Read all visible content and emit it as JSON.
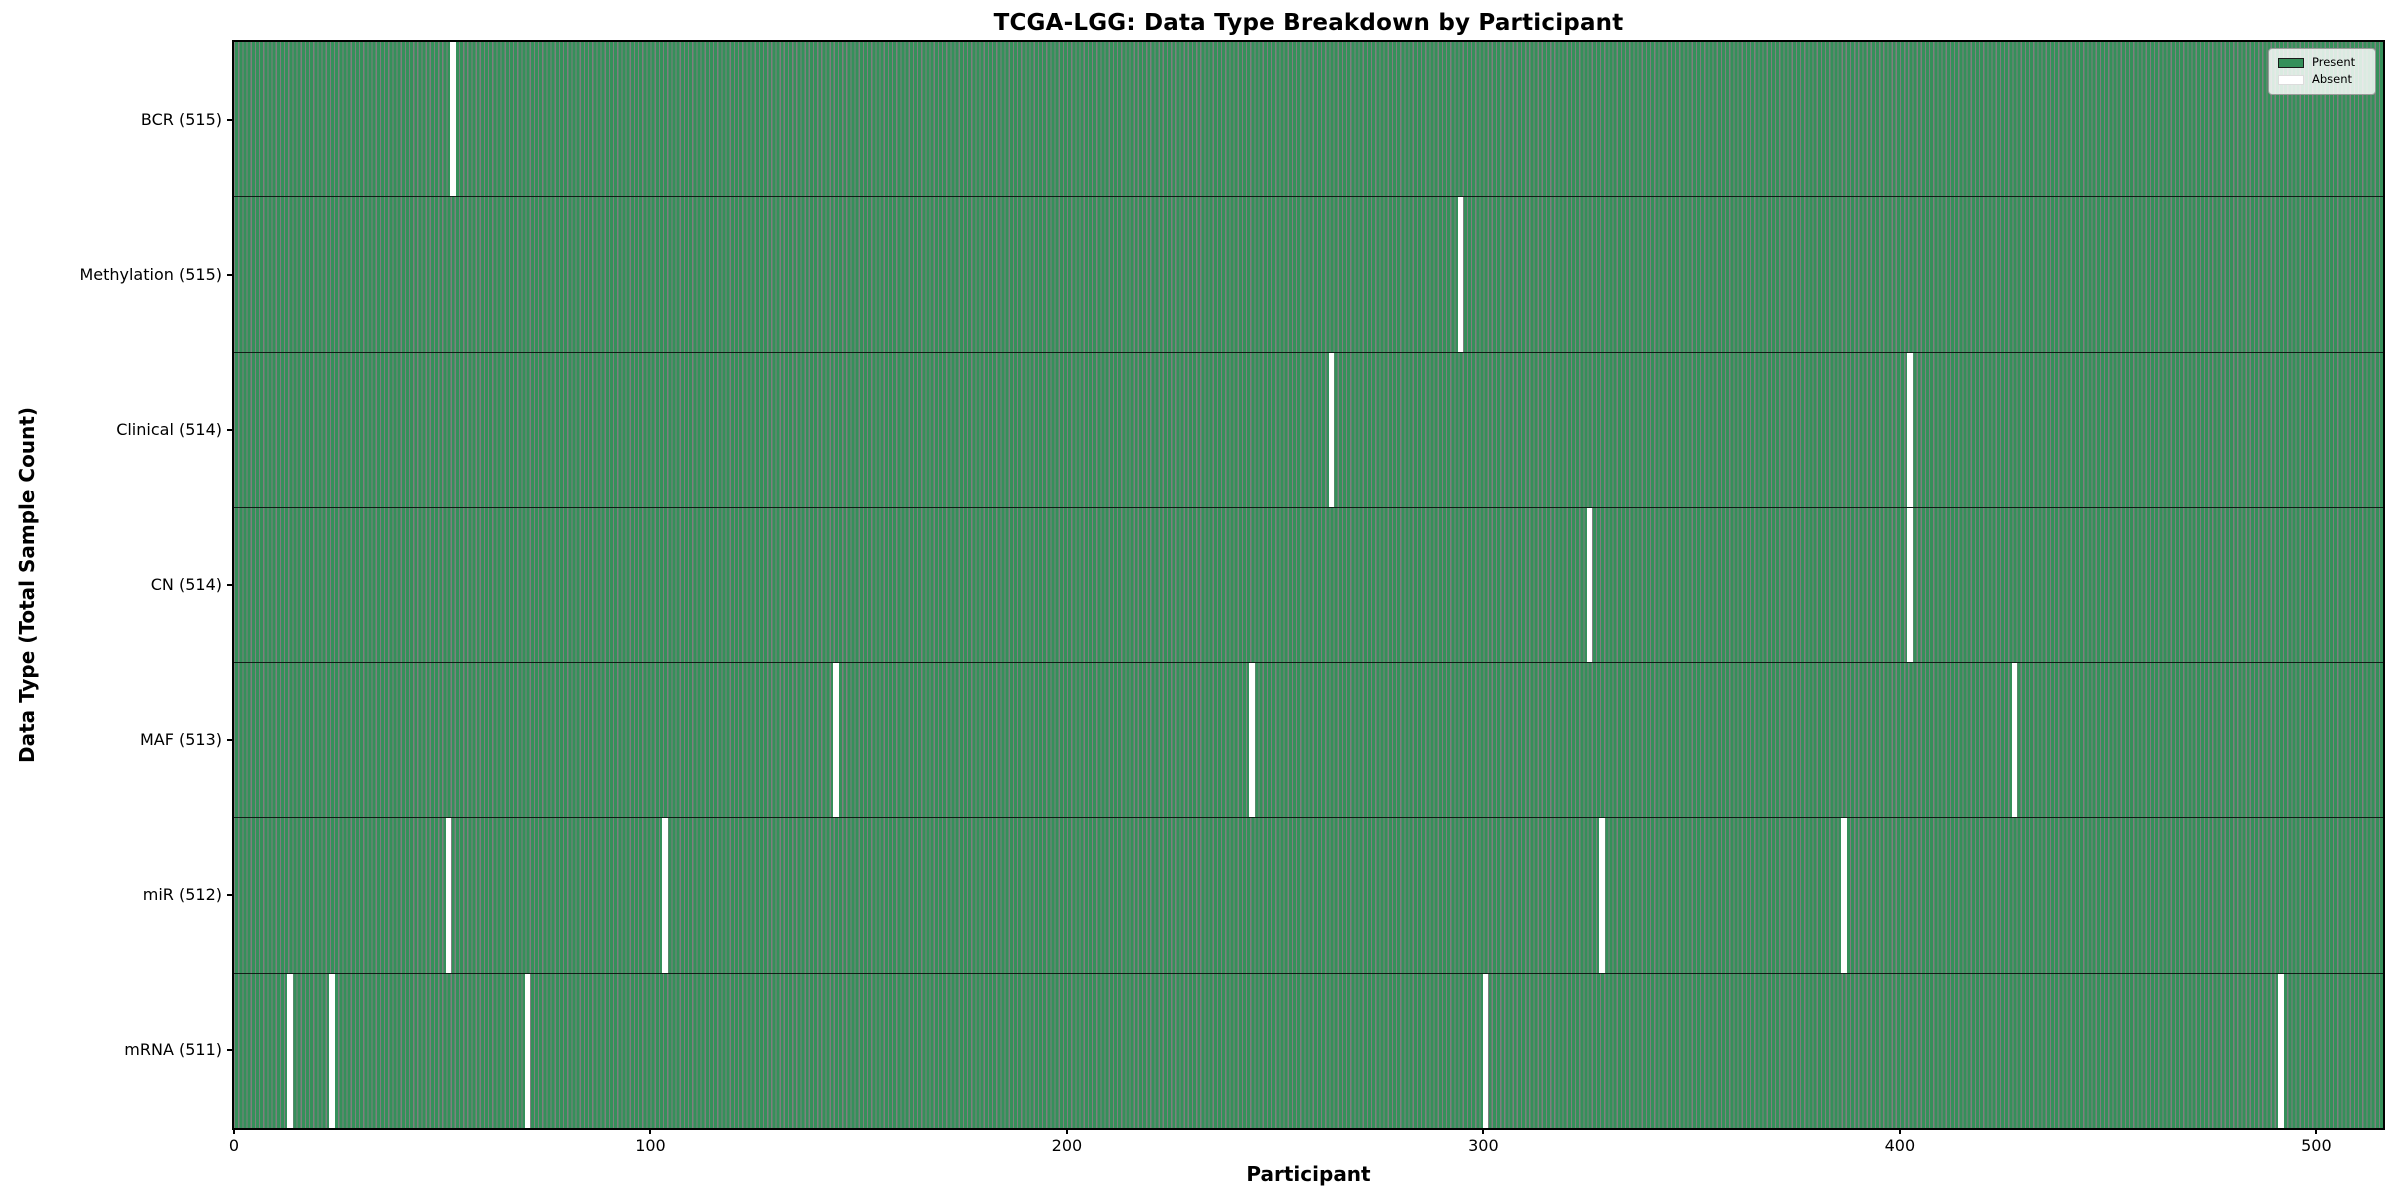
{
  "chart_data": {
    "type": "heatmap",
    "title": "TCGA-LGG: Data Type Breakdown by Participant",
    "xlabel": "Participant",
    "ylabel": "Data Type (Total Sample Count)",
    "x_ticks": [
      0,
      100,
      200,
      300,
      400,
      500
    ],
    "x_range": [
      0,
      516
    ],
    "n_participants": 516,
    "grid": false,
    "colors": {
      "present": "#35905a",
      "absent": "#ffffff",
      "cell_edge": "rgba(0,0,0,0.5)",
      "spine": "#000000"
    },
    "legend": {
      "position": "upper-right",
      "entries": [
        {
          "label": "Present",
          "color": "#35905a"
        },
        {
          "label": "Absent",
          "color": "#ffffff"
        }
      ]
    },
    "rows": [
      {
        "label": "BCR (515)",
        "data_type": "BCR",
        "total": 515,
        "absent_participants": [
          52
        ]
      },
      {
        "label": "Methylation (515)",
        "data_type": "Methylation",
        "total": 515,
        "absent_participants": [
          294
        ]
      },
      {
        "label": "Clinical (514)",
        "data_type": "Clinical",
        "total": 514,
        "absent_participants": [
          263,
          402
        ]
      },
      {
        "label": "CN (514)",
        "data_type": "CN",
        "total": 514,
        "absent_participants": [
          325,
          402
        ]
      },
      {
        "label": "MAF (513)",
        "data_type": "MAF",
        "total": 513,
        "absent_participants": [
          144,
          244,
          427
        ]
      },
      {
        "label": "miR (512)",
        "data_type": "miR",
        "total": 512,
        "absent_participants": [
          51,
          103,
          328,
          386
        ]
      },
      {
        "label": "mRNA (511)",
        "data_type": "mRNA",
        "total": 511,
        "absent_participants": [
          13,
          23,
          70,
          300,
          491
        ]
      }
    ]
  }
}
